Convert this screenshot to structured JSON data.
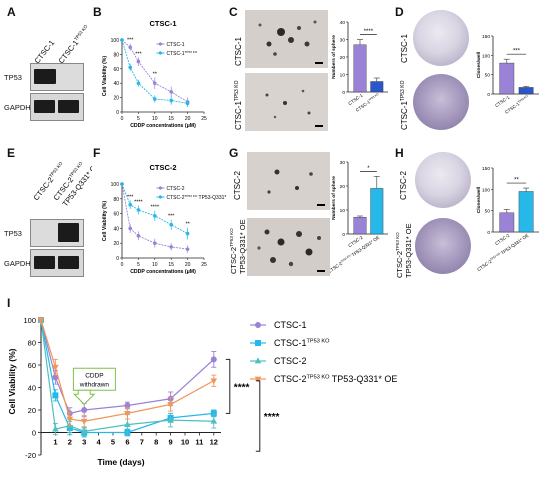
{
  "panels": {
    "A": {
      "label": "A",
      "lanes": [
        "CTSC-1",
        "CTSC-1TP53 KO"
      ],
      "rows": [
        "TP53",
        "GAPDH"
      ]
    },
    "B": {
      "label": "B"
    },
    "C": {
      "label": "C",
      "img_top": "CTSC-1",
      "img_bottom": "CTSC-1TP53 KO",
      "sig": "****"
    },
    "D": {
      "label": "D",
      "img_top": "CTSC-1",
      "img_bottom": "CTSC-1TP53 KO",
      "sig": "***"
    },
    "E": {
      "label": "E",
      "lanes": [
        "CTSC-2TP53 KO",
        "CTSC-2TP53 KO TP53-Q331* OE"
      ],
      "rows": [
        "TP53",
        "GAPDH"
      ]
    },
    "F": {
      "label": "F"
    },
    "G": {
      "label": "G",
      "img_top": "CTSC-2",
      "img_bottom_1": "CTSC-2TP53 KO",
      "img_bottom_2": "TP53-Q331* OE",
      "sig": "*"
    },
    "H": {
      "label": "H",
      "img_top": "CTSC-2",
      "img_bottom_1": "CTSC-2TP53 KO",
      "img_bottom_2": "TP53-Q331* OE",
      "sig": "**"
    },
    "I": {
      "label": "I",
      "annotation": "CDDP withdrawn",
      "sig1": "****",
      "sig2": "****"
    }
  },
  "colors": {
    "purple": "#9a82d6",
    "blue": "#27b8ea",
    "teal": "#4fbfbf",
    "orange": "#f0965a",
    "darkblue": "#2a58c9"
  },
  "chart_data": [
    {
      "id": "B",
      "type": "line",
      "title": "CTSC-1",
      "xlabel": "CDDP concentrations (μM)",
      "ylabel": "Cell Viability (%)",
      "xlim": [
        0,
        25
      ],
      "ylim": [
        0,
        100
      ],
      "xticks": [
        0,
        5,
        10,
        15,
        20,
        25
      ],
      "yticks": [
        0,
        20,
        40,
        60,
        80,
        100
      ],
      "x": [
        0,
        2.5,
        5,
        10,
        15,
        20
      ],
      "series": [
        {
          "name": "CTSC-1",
          "color": "#9a82d6",
          "values": [
            100,
            90,
            70,
            40,
            28,
            14
          ],
          "err": [
            2,
            5,
            6,
            8,
            7,
            6
          ]
        },
        {
          "name": "CTSC-1TP53 KO",
          "color": "#27b8ea",
          "values": [
            100,
            62,
            40,
            18,
            16,
            12
          ],
          "err": [
            2,
            5,
            5,
            5,
            6,
            5
          ]
        }
      ],
      "sig": [
        {
          "x": 2.5,
          "text": "***"
        },
        {
          "x": 5,
          "text": "***"
        },
        {
          "x": 10,
          "text": "**"
        }
      ]
    },
    {
      "id": "C_bar",
      "type": "bar",
      "ylabel": "Numbers of sphere",
      "categories": [
        "CTSC-1",
        "CTSC-1TP53 KO"
      ],
      "values": [
        27,
        6
      ],
      "err": [
        3,
        2
      ],
      "ylim": [
        0,
        40
      ],
      "yticks": [
        0,
        10,
        20,
        30,
        40
      ],
      "colors": [
        "#9a82d6",
        "#2a58c9"
      ]
    },
    {
      "id": "D_bar",
      "type": "bar",
      "ylabel": "Clones/well",
      "categories": [
        "CTSC-1",
        "CTSC-1TP53 KO"
      ],
      "values": [
        80,
        17
      ],
      "err": [
        10,
        3
      ],
      "ylim": [
        0,
        150
      ],
      "yticks": [
        0,
        50,
        100,
        150
      ],
      "colors": [
        "#9a82d6",
        "#2a58c9"
      ]
    },
    {
      "id": "F",
      "type": "line",
      "title": "CTSC-2",
      "xlabel": "CDDP concentrations (μM)",
      "ylabel": "Cell Viability (%)",
      "xlim": [
        0,
        25
      ],
      "ylim": [
        0,
        100
      ],
      "xticks": [
        0,
        5,
        10,
        15,
        20,
        25
      ],
      "yticks": [
        0,
        20,
        40,
        60,
        80,
        100
      ],
      "x": [
        0,
        2.5,
        5,
        10,
        15,
        20
      ],
      "series": [
        {
          "name": "CTSC-2",
          "color": "#9a82d6",
          "values": [
            100,
            40,
            30,
            20,
            15,
            12
          ],
          "err": [
            2,
            6,
            6,
            6,
            5,
            5
          ]
        },
        {
          "name": "CTSC-2TP53 KO TP53-Q331* OE",
          "color": "#27b8ea",
          "values": [
            100,
            72,
            65,
            57,
            45,
            33
          ],
          "err": [
            2,
            6,
            6,
            7,
            7,
            8
          ]
        }
      ],
      "sig": [
        {
          "x": 2.5,
          "text": "***"
        },
        {
          "x": 5,
          "text": "****"
        },
        {
          "x": 10,
          "text": "****"
        },
        {
          "x": 15,
          "text": "***"
        },
        {
          "x": 20,
          "text": "**"
        }
      ]
    },
    {
      "id": "G_bar",
      "type": "bar",
      "ylabel": "Numbers of sphere",
      "categories": [
        "CTSC-2",
        "CTSC-2TP53 KO TP53-Q331* OE"
      ],
      "values": [
        7,
        19
      ],
      "err": [
        0.5,
        5
      ],
      "ylim": [
        0,
        30
      ],
      "yticks": [
        0,
        10,
        20,
        30
      ],
      "colors": [
        "#9a82d6",
        "#27b8ea"
      ]
    },
    {
      "id": "H_bar",
      "type": "bar",
      "ylabel": "Clones/well",
      "categories": [
        "CTSC-2",
        "CTSC-2TP53 KO TP53-Q331* OE"
      ],
      "values": [
        45,
        95
      ],
      "err": [
        8,
        8
      ],
      "ylim": [
        0,
        150
      ],
      "yticks": [
        0,
        50,
        100,
        150
      ],
      "colors": [
        "#9a82d6",
        "#27b8ea"
      ]
    },
    {
      "id": "I",
      "type": "line",
      "xlabel": "Time (days)",
      "ylabel": "Cell Viability (%)",
      "xlim": [
        0,
        12.5
      ],
      "ylim": [
        -20,
        100
      ],
      "xticks": [
        0,
        1,
        2,
        3,
        4,
        5,
        6,
        7,
        8,
        9,
        10,
        11,
        12
      ],
      "yticks": [
        -20,
        0,
        20,
        40,
        60,
        80,
        100
      ],
      "legend": "right",
      "series": [
        {
          "name": "CTSC-1",
          "sup": "",
          "suffix": "",
          "color": "#9a82d6",
          "marker": "circle",
          "x": [
            0,
            1,
            2,
            3,
            6,
            9,
            12
          ],
          "values": [
            100,
            49,
            17,
            20,
            24,
            30,
            65
          ],
          "err": [
            2,
            6,
            5,
            6,
            3,
            6,
            7
          ]
        },
        {
          "name": "CTSC-1",
          "sup": "TP53 KO",
          "suffix": "",
          "color": "#27b8ea",
          "marker": "square",
          "x": [
            0,
            1,
            2,
            3,
            6,
            9,
            12
          ],
          "values": [
            100,
            33,
            4,
            0,
            0,
            13,
            17
          ],
          "err": [
            2,
            5,
            6,
            4,
            3,
            4,
            3
          ]
        },
        {
          "name": "CTSC-2",
          "sup": "",
          "suffix": "",
          "color": "#4fbfbf",
          "marker": "triangle",
          "x": [
            0,
            1,
            2,
            3,
            6,
            9,
            12
          ],
          "values": [
            100,
            3,
            6,
            1,
            7,
            11,
            10
          ],
          "err": [
            2,
            5,
            6,
            4,
            9,
            6,
            6
          ]
        },
        {
          "name": "CTSC-2",
          "sup": "TP53 KO",
          "suffix": "TP53-Q331* OE",
          "color": "#f0965a",
          "marker": "tridown",
          "x": [
            0,
            1,
            2,
            3,
            6,
            9,
            12
          ],
          "values": [
            100,
            58,
            12,
            10,
            17,
            25,
            46
          ],
          "err": [
            2,
            7,
            6,
            5,
            5,
            6,
            5
          ]
        }
      ]
    }
  ]
}
